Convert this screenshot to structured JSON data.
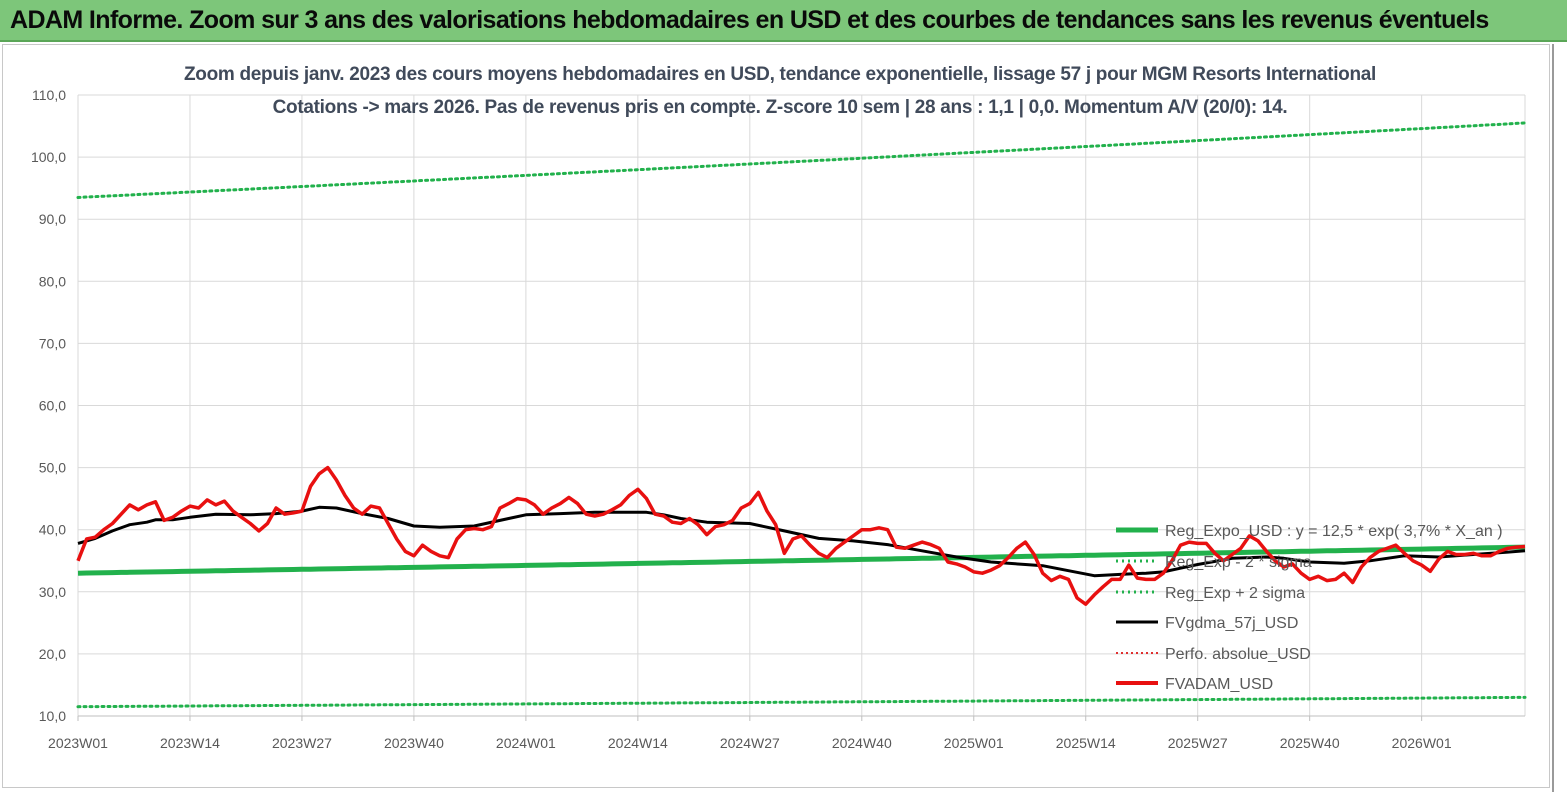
{
  "banner": {
    "title": "ADAM Informe. Zoom sur 3 ans des valorisations hebdomadaires en USD et des courbes de tendances sans les revenus éventuels"
  },
  "colors": {
    "banner_bg": "#7dc67a",
    "reg_expo": "#22b14c",
    "reg_band": "#22b14c",
    "fvgdma": "#000000",
    "perfo": "#e03030",
    "fvadam": "#e81010",
    "grid": "#d9d9d9",
    "title_text": "#404a5a"
  },
  "chart_data": {
    "type": "line",
    "title_line1": "Zoom depuis janv. 2023 des cours moyens hebdomadaires en USD, tendance exponentielle, lissage 57 j pour MGM Resorts International",
    "title_line2": "Cotations -> mars 2026. Pas de revenus pris en compte. Z-score 10 sem  | 28 ans : 1,1 | 0,0. Momentum A/V (20/0): 14.",
    "y_range": [
      10,
      110
    ],
    "y_ticks": [
      "10,0",
      "20,0",
      "30,0",
      "40,0",
      "50,0",
      "60,0",
      "70,0",
      "80,0",
      "90,0",
      "100,0",
      "110,0"
    ],
    "x_range_weeks": [
      0,
      168
    ],
    "x_tick_labels": [
      "2023W01",
      "2023W14",
      "2023W27",
      "2023W40",
      "2024W01",
      "2024W14",
      "2024W27",
      "2024W40",
      "2025W01",
      "2025W14",
      "2025W27",
      "2025W40",
      "2026W01"
    ],
    "x_tick_weeks": [
      0,
      13,
      26,
      39,
      52,
      65,
      78,
      91,
      104,
      117,
      130,
      143,
      156
    ],
    "legend": [
      {
        "key": "reg_expo",
        "label": "Reg_Expo_USD : y = 12,5 * exp( 3,7% *  X_an )"
      },
      {
        "key": "reg_minus",
        "label": "Reg_Exp - 2 * sigma"
      },
      {
        "key": "reg_plus",
        "label": "Reg_Exp + 2 sigma"
      },
      {
        "key": "fvgdma",
        "label": "FVgdma_57j_USD"
      },
      {
        "key": "perfo",
        "label": "Perfo. absolue_USD"
      },
      {
        "key": "fvadam",
        "label": "FVADAM_USD"
      }
    ],
    "series": {
      "reg_expo": {
        "start": 33.0,
        "end": 37.2
      },
      "reg_minus": {
        "start": 11.5,
        "end": 13.0
      },
      "reg_plus": {
        "start": 93.5,
        "end": 105.5
      },
      "fvgdma": [
        [
          0,
          37.8
        ],
        [
          2,
          38.6
        ],
        [
          4,
          39.8
        ],
        [
          6,
          40.8
        ],
        [
          8,
          41.2
        ],
        [
          9,
          41.6
        ],
        [
          11,
          41.6
        ],
        [
          13,
          42.0
        ],
        [
          16,
          42.5
        ],
        [
          20,
          42.4
        ],
        [
          23,
          42.6
        ],
        [
          26,
          43.0
        ],
        [
          28,
          43.6
        ],
        [
          30,
          43.5
        ],
        [
          33,
          42.6
        ],
        [
          36,
          41.8
        ],
        [
          39,
          40.6
        ],
        [
          42,
          40.4
        ],
        [
          46,
          40.6
        ],
        [
          50,
          41.8
        ],
        [
          52,
          42.4
        ],
        [
          56,
          42.6
        ],
        [
          60,
          42.8
        ],
        [
          66,
          42.8
        ],
        [
          68,
          42.4
        ],
        [
          70,
          41.8
        ],
        [
          73,
          41.2
        ],
        [
          78,
          41.0
        ],
        [
          82,
          39.8
        ],
        [
          86,
          38.6
        ],
        [
          90,
          38.2
        ],
        [
          94,
          37.6
        ],
        [
          98,
          36.6
        ],
        [
          102,
          35.6
        ],
        [
          106,
          34.8
        ],
        [
          110,
          34.4
        ],
        [
          112,
          34.2
        ],
        [
          115,
          33.4
        ],
        [
          118,
          32.6
        ],
        [
          121,
          32.8
        ],
        [
          124,
          33.0
        ],
        [
          126,
          33.2
        ],
        [
          128,
          33.8
        ],
        [
          130,
          34.4
        ],
        [
          134,
          35.4
        ],
        [
          138,
          35.6
        ],
        [
          140,
          35.4
        ],
        [
          143,
          34.8
        ],
        [
          147,
          34.6
        ],
        [
          150,
          35.0
        ],
        [
          154,
          35.8
        ],
        [
          158,
          35.6
        ],
        [
          162,
          36.0
        ],
        [
          166,
          36.4
        ],
        [
          168,
          36.6
        ]
      ],
      "fvadam": [
        [
          0,
          35.0
        ],
        [
          1,
          38.5
        ],
        [
          2,
          38.8
        ],
        [
          3,
          40.0
        ],
        [
          4,
          41.0
        ],
        [
          5,
          42.5
        ],
        [
          6,
          44.0
        ],
        [
          7,
          43.2
        ],
        [
          8,
          44.0
        ],
        [
          9,
          44.5
        ],
        [
          10,
          41.5
        ],
        [
          11,
          42.0
        ],
        [
          12,
          43.0
        ],
        [
          13,
          43.8
        ],
        [
          14,
          43.5
        ],
        [
          15,
          44.8
        ],
        [
          16,
          44.0
        ],
        [
          17,
          44.6
        ],
        [
          18,
          43.0
        ],
        [
          19,
          42.0
        ],
        [
          20,
          41.0
        ],
        [
          21,
          39.8
        ],
        [
          22,
          41.0
        ],
        [
          23,
          43.5
        ],
        [
          24,
          42.5
        ],
        [
          25,
          42.7
        ],
        [
          26,
          43.0
        ],
        [
          27,
          47.0
        ],
        [
          28,
          49.0
        ],
        [
          29,
          50.0
        ],
        [
          30,
          48.0
        ],
        [
          31,
          45.5
        ],
        [
          32,
          43.5
        ],
        [
          33,
          42.5
        ],
        [
          34,
          43.8
        ],
        [
          35,
          43.5
        ],
        [
          36,
          41.0
        ],
        [
          37,
          38.5
        ],
        [
          38,
          36.5
        ],
        [
          39,
          35.8
        ],
        [
          40,
          37.5
        ],
        [
          41,
          36.5
        ],
        [
          42,
          35.8
        ],
        [
          43,
          35.5
        ],
        [
          44,
          38.5
        ],
        [
          45,
          40.0
        ],
        [
          46,
          40.2
        ],
        [
          47,
          40.0
        ],
        [
          48,
          40.5
        ],
        [
          49,
          43.5
        ],
        [
          50,
          44.2
        ],
        [
          51,
          45.0
        ],
        [
          52,
          44.8
        ],
        [
          53,
          44.0
        ],
        [
          54,
          42.5
        ],
        [
          55,
          43.5
        ],
        [
          56,
          44.2
        ],
        [
          57,
          45.2
        ],
        [
          58,
          44.2
        ],
        [
          59,
          42.5
        ],
        [
          60,
          42.2
        ],
        [
          61,
          42.5
        ],
        [
          62,
          43.2
        ],
        [
          63,
          44.0
        ],
        [
          64,
          45.5
        ],
        [
          65,
          46.5
        ],
        [
          66,
          45.0
        ],
        [
          67,
          42.5
        ],
        [
          68,
          42.2
        ],
        [
          69,
          41.2
        ],
        [
          70,
          41.0
        ],
        [
          71,
          41.8
        ],
        [
          72,
          40.8
        ],
        [
          73,
          39.2
        ],
        [
          74,
          40.5
        ],
        [
          75,
          40.8
        ],
        [
          76,
          41.5
        ],
        [
          77,
          43.5
        ],
        [
          78,
          44.2
        ],
        [
          79,
          46.0
        ],
        [
          80,
          43.0
        ],
        [
          81,
          40.8
        ],
        [
          82,
          36.2
        ],
        [
          83,
          38.5
        ],
        [
          84,
          39.0
        ],
        [
          85,
          37.5
        ],
        [
          86,
          36.2
        ],
        [
          87,
          35.5
        ],
        [
          88,
          37.0
        ],
        [
          89,
          38.0
        ],
        [
          90,
          39.0
        ],
        [
          91,
          40.0
        ],
        [
          92,
          40.0
        ],
        [
          93,
          40.3
        ],
        [
          94,
          40.0
        ],
        [
          95,
          37.2
        ],
        [
          96,
          37.0
        ],
        [
          97,
          37.5
        ],
        [
          98,
          38.0
        ],
        [
          99,
          37.6
        ],
        [
          100,
          37.0
        ],
        [
          101,
          34.8
        ],
        [
          102,
          34.5
        ],
        [
          103,
          34.0
        ],
        [
          104,
          33.2
        ],
        [
          105,
          33.0
        ],
        [
          106,
          33.5
        ],
        [
          107,
          34.2
        ],
        [
          108,
          35.5
        ],
        [
          109,
          37.0
        ],
        [
          110,
          38.0
        ],
        [
          111,
          36.0
        ],
        [
          112,
          33.0
        ],
        [
          113,
          31.8
        ],
        [
          114,
          32.5
        ],
        [
          115,
          32.0
        ],
        [
          116,
          29.0
        ],
        [
          117,
          28.0
        ],
        [
          118,
          29.5
        ],
        [
          119,
          30.8
        ],
        [
          120,
          32.0
        ],
        [
          121,
          32.0
        ],
        [
          122,
          34.3
        ],
        [
          123,
          32.2
        ],
        [
          124,
          32.0
        ],
        [
          125,
          32.0
        ],
        [
          126,
          33.0
        ],
        [
          127,
          35.0
        ],
        [
          128,
          37.5
        ],
        [
          129,
          38.0
        ],
        [
          130,
          37.8
        ],
        [
          131,
          37.8
        ],
        [
          132,
          36.2
        ],
        [
          133,
          35.0
        ],
        [
          134,
          36.0
        ],
        [
          135,
          37.0
        ],
        [
          136,
          39.0
        ],
        [
          137,
          38.2
        ],
        [
          138,
          36.5
        ],
        [
          139,
          35.0
        ],
        [
          140,
          34.0
        ],
        [
          141,
          34.5
        ],
        [
          142,
          33.0
        ],
        [
          143,
          32.0
        ],
        [
          144,
          32.5
        ],
        [
          145,
          31.8
        ],
        [
          146,
          32.0
        ],
        [
          147,
          33.0
        ],
        [
          148,
          31.5
        ],
        [
          149,
          34.0
        ],
        [
          150,
          35.5
        ],
        [
          151,
          36.5
        ],
        [
          152,
          37.0
        ],
        [
          153,
          37.5
        ],
        [
          154,
          36.2
        ],
        [
          155,
          35.0
        ],
        [
          156,
          34.3
        ],
        [
          157,
          33.3
        ],
        [
          158,
          35.3
        ],
        [
          159,
          36.5
        ],
        [
          160,
          36.0
        ],
        [
          161,
          36.0
        ],
        [
          162,
          36.2
        ],
        [
          163,
          35.8
        ],
        [
          164,
          35.8
        ],
        [
          165,
          36.5
        ],
        [
          166,
          37.0
        ],
        [
          167,
          37.2
        ],
        [
          168,
          37.3
        ]
      ]
    }
  }
}
